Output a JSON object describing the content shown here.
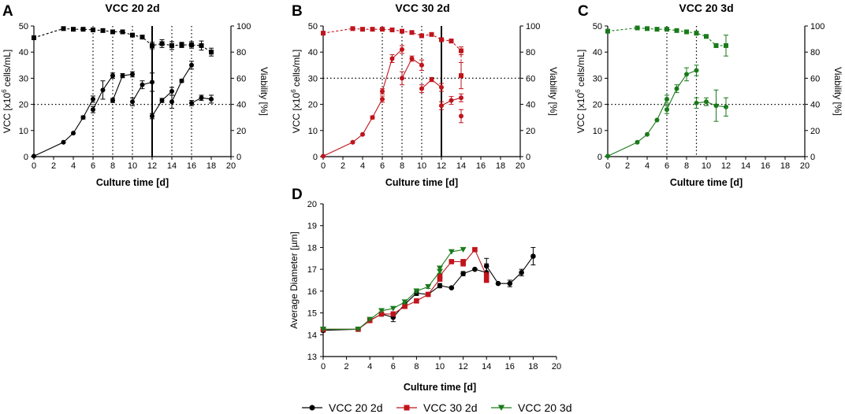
{
  "chart_data": [
    {
      "panel": "A",
      "type": "line",
      "title": "VCC 20 2d",
      "color": "#000000",
      "xlabel": "Culture time [d]",
      "ylabel_left": "VCC [x10",
      "ylabel_sup": "6",
      "ylabel_rest": " cells/mL]",
      "ylabel_right": "Viability [%]",
      "xlim": [
        0,
        20
      ],
      "ylim_left": [
        0,
        50
      ],
      "ylim_right": [
        0,
        100
      ],
      "xticks": [
        "0",
        "2",
        "4",
        "6",
        "8",
        "10",
        "12",
        "14",
        "16",
        "18",
        "20"
      ],
      "yticks_left": [
        "0",
        "10",
        "20",
        "30",
        "40",
        "50"
      ],
      "yticks_right": [
        "0",
        "20",
        "40",
        "60",
        "80",
        "100"
      ],
      "vcc_segments": [
        {
          "x": [
            0,
            3,
            4,
            5,
            6
          ],
          "y": [
            0.2,
            5.5,
            9,
            15,
            22
          ],
          "err": [
            0,
            0.3,
            0.4,
            0.6,
            1.2
          ]
        },
        {
          "x": [
            6,
            7,
            8
          ],
          "y": [
            18,
            25.5,
            31
          ],
          "err": [
            1.2,
            3.5,
            1.0
          ]
        },
        {
          "x": [
            8,
            9,
            10
          ],
          "y": [
            21.5,
            31,
            31.5
          ],
          "err": [
            0.8,
            0.8,
            1.0
          ]
        },
        {
          "x": [
            10,
            11,
            12
          ],
          "y": [
            21,
            27.5,
            28.5
          ],
          "err": [
            1.5,
            1.5,
            3.5
          ]
        },
        {
          "x": [
            12,
            13,
            14
          ],
          "y": [
            15.5,
            21.5,
            25
          ],
          "err": [
            1.0,
            0.8,
            1.5
          ]
        },
        {
          "x": [
            14,
            15,
            16
          ],
          "y": [
            21,
            29,
            35
          ],
          "err": [
            2.5,
            0.6,
            1.5
          ]
        },
        {
          "x": [
            16,
            17,
            18
          ],
          "y": [
            20.5,
            22.5,
            22
          ],
          "err": [
            1.0,
            1.0,
            1.5
          ]
        }
      ],
      "viability": {
        "x": [
          0,
          3,
          4,
          5,
          6,
          7,
          8,
          9,
          10,
          11,
          12,
          13,
          14,
          15,
          16,
          17,
          18
        ],
        "y": [
          91,
          98,
          97.5,
          97.5,
          97,
          96.5,
          95.5,
          95.5,
          93,
          91.5,
          85,
          86.5,
          85,
          85.5,
          85.5,
          85,
          80
        ],
        "err": [
          1,
          0.5,
          0.5,
          0.5,
          0.5,
          0.5,
          0.5,
          0.5,
          0.6,
          0.6,
          2.5,
          3,
          3,
          2,
          2.5,
          3.5,
          3
        ]
      },
      "vlines_dotted": [
        6,
        8,
        10,
        14,
        16
      ],
      "vlines_solid": [
        12
      ],
      "hline_left": 20
    },
    {
      "panel": "B",
      "type": "line",
      "title": "VCC 30 2d",
      "color": "#c0141c",
      "xlabel": "Culture time [d]",
      "ylabel_left": "VCC [x10",
      "ylabel_sup": "6",
      "ylabel_rest": " cells/mL]",
      "ylabel_right": "Viability [%]",
      "xlim": [
        0,
        20
      ],
      "ylim_left": [
        0,
        50
      ],
      "ylim_right": [
        0,
        100
      ],
      "xticks": [
        "0",
        "2",
        "4",
        "6",
        "8",
        "10",
        "12",
        "14",
        "16",
        "18",
        "20"
      ],
      "yticks_left": [
        "0",
        "10",
        "20",
        "30",
        "40",
        "50"
      ],
      "yticks_right": [
        "0",
        "20",
        "40",
        "60",
        "80",
        "100"
      ],
      "vcc_segments": [
        {
          "x": [
            0,
            3,
            4,
            5,
            6
          ],
          "y": [
            0.2,
            5.5,
            8.5,
            15,
            22
          ],
          "err": [
            0,
            0.3,
            0.4,
            0.6,
            1.2
          ]
        },
        {
          "x": [
            6,
            7,
            8
          ],
          "y": [
            25,
            37.5,
            41
          ],
          "err": [
            1.0,
            1.5,
            1.5
          ]
        },
        {
          "x": [
            8,
            9,
            10
          ],
          "y": [
            30,
            37.5,
            35
          ],
          "err": [
            2.5,
            1.0,
            2.0
          ]
        },
        {
          "x": [
            10,
            11,
            12
          ],
          "y": [
            26,
            29.5,
            26.5
          ],
          "err": [
            1.5,
            0.8,
            1.5
          ]
        },
        {
          "x": [
            12,
            13,
            14
          ],
          "y": [
            19.5,
            21.5,
            22.5
          ],
          "err": [
            1.5,
            1.5,
            1.5
          ]
        },
        {
          "x": [
            14
          ],
          "y": [
            15.5
          ],
          "err": [
            2.5
          ]
        }
      ],
      "viability": {
        "x": [
          0,
          3,
          4,
          5,
          6,
          7,
          8,
          9,
          10,
          11,
          12,
          13,
          14
        ],
        "y": [
          94.5,
          98,
          97.5,
          97.5,
          97.5,
          97,
          96,
          95,
          92.5,
          93.5,
          89.5,
          88.5,
          81
        ],
        "err": [
          0.5,
          0.5,
          0.5,
          0.5,
          0.5,
          0.6,
          1.0,
          1.0,
          1.2,
          0.8,
          1.0,
          1.5,
          3.0
        ]
      },
      "viability_extra": {
        "x": [
          14
        ],
        "y": [
          62
        ],
        "err": [
          10
        ]
      },
      "vlines_dotted": [
        6,
        8,
        10
      ],
      "vlines_solid": [
        12
      ],
      "hline_left": 30
    },
    {
      "panel": "C",
      "type": "line",
      "title": "VCC 20 3d",
      "color": "#1a7a1a",
      "xlabel": "Culture time [d]",
      "ylabel_left": "VCC [x10",
      "ylabel_sup": "6",
      "ylabel_rest": " cells/mL]",
      "ylabel_right": "Viability [%]",
      "xlim": [
        0,
        20
      ],
      "ylim_left": [
        0,
        50
      ],
      "ylim_right": [
        0,
        100
      ],
      "xticks": [
        "0",
        "2",
        "4",
        "6",
        "8",
        "10",
        "12",
        "14",
        "16",
        "18",
        "20"
      ],
      "yticks_left": [
        "0",
        "10",
        "20",
        "30",
        "40",
        "50"
      ],
      "yticks_right": [
        "0",
        "20",
        "40",
        "60",
        "80",
        "100"
      ],
      "vcc_segments": [
        {
          "x": [
            0,
            3,
            4,
            5,
            6
          ],
          "y": [
            0.2,
            5.5,
            8.5,
            14,
            22
          ],
          "err": [
            0,
            0.3,
            0.4,
            0.5,
            1.5
          ]
        },
        {
          "x": [
            6,
            7,
            8,
            9
          ],
          "y": [
            18,
            26,
            31.5,
            33
          ],
          "err": [
            1.5,
            1.5,
            2.5,
            2.0
          ]
        },
        {
          "x": [
            9,
            10,
            11,
            12
          ],
          "y": [
            20.5,
            21,
            19.5,
            19
          ],
          "err": [
            2.0,
            1.5,
            6.0,
            3.5
          ]
        }
      ],
      "viability": {
        "x": [
          0,
          3,
          4,
          5,
          6,
          7,
          8,
          9,
          10,
          11,
          12
        ],
        "y": [
          96,
          98.5,
          98,
          97.5,
          97.5,
          96.5,
          95.5,
          94.5,
          92,
          85,
          85
        ],
        "err": [
          1.0,
          0.5,
          0.5,
          0.5,
          0.5,
          0.6,
          0.8,
          1.0,
          1.0,
          1.5,
          8.0
        ]
      },
      "vlines_dotted": [
        6,
        9
      ],
      "vlines_solid": [],
      "hline_left": 20
    },
    {
      "panel": "D",
      "type": "line",
      "xlabel": "Culture time [d]",
      "ylabel": "Average Diameter [µm]",
      "xlim": [
        0,
        20
      ],
      "ylim": [
        13,
        20
      ],
      "xticks": [
        "0",
        "2",
        "4",
        "6",
        "8",
        "10",
        "12",
        "14",
        "16",
        "18",
        "20"
      ],
      "yticks": [
        "13",
        "14",
        "15",
        "16",
        "17",
        "18",
        "19",
        "20"
      ],
      "series": [
        {
          "name": "VCC 20 2d",
          "color": "#000000",
          "marker": "circle",
          "x": [
            0,
            3,
            4,
            5,
            6,
            7,
            8,
            9,
            10,
            11,
            12,
            13,
            14,
            14,
            15,
            16,
            17,
            18
          ],
          "y": [
            14.2,
            14.25,
            14.65,
            14.95,
            14.8,
            15.4,
            15.9,
            15.85,
            16.25,
            16.15,
            16.8,
            17.0,
            16.85,
            17.15,
            16.35,
            16.35,
            16.85,
            17.6
          ],
          "err": [
            0.08,
            0.05,
            0.05,
            0.1,
            0.2,
            0.08,
            0.1,
            0.08,
            0.1,
            0.05,
            0.1,
            0.05,
            0.4,
            0.35,
            0.05,
            0.15,
            0.15,
            0.4
          ]
        },
        {
          "name": "VCC 30 2d",
          "color": "#c0141c",
          "marker": "square",
          "x": [
            0,
            3,
            4,
            5,
            6,
            7,
            8,
            9,
            10,
            10,
            11,
            12,
            12,
            13,
            14,
            14
          ],
          "y": [
            14.25,
            14.25,
            14.65,
            14.95,
            14.95,
            15.3,
            15.55,
            15.85,
            16.55,
            16.7,
            17.35,
            17.35,
            17.25,
            17.9,
            16.7,
            16.5
          ],
          "err": [
            0.05,
            0.05,
            0.05,
            0.05,
            0.1,
            0.08,
            0.08,
            0.08,
            0.1,
            0.1,
            0.05,
            0.1,
            0.1,
            0.05,
            0.15,
            0.1
          ]
        },
        {
          "name": "VCC 20 3d",
          "color": "#1a7a1a",
          "marker": "triangle-down",
          "x": [
            0,
            3,
            4,
            5,
            6,
            7,
            8,
            9,
            10,
            10,
            11,
            12
          ],
          "y": [
            14.25,
            14.25,
            14.7,
            15.1,
            15.2,
            15.5,
            16.0,
            16.2,
            16.9,
            17.05,
            17.8,
            17.9
          ],
          "err": [
            0.05,
            0.05,
            0.05,
            0.05,
            0.05,
            0.08,
            0.08,
            0.08,
            0.08,
            0.08,
            0.05,
            0.05
          ]
        }
      ]
    }
  ],
  "panel_letters": [
    "A",
    "B",
    "C",
    "D"
  ]
}
